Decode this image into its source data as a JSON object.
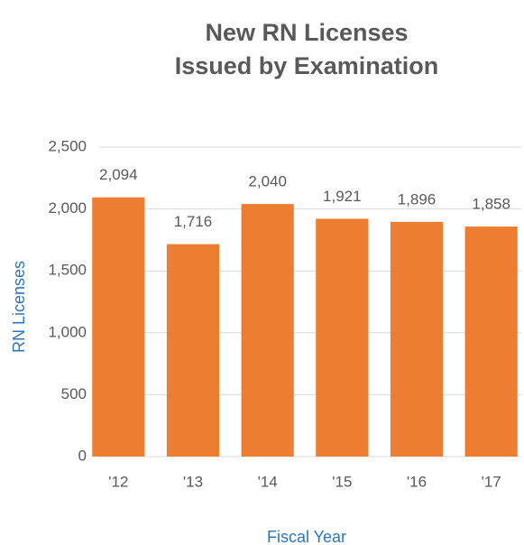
{
  "chart_data": {
    "type": "bar",
    "title": [
      "New RN Licenses",
      "Issued by Examination"
    ],
    "x_label": "Fiscal Year",
    "y_label": "RN Licenses",
    "categories": [
      "'12",
      "'13",
      "'14",
      "'15",
      "'16",
      "'17"
    ],
    "values": [
      2094,
      1716,
      2040,
      1921,
      1896,
      1858
    ],
    "value_labels": [
      "2,094",
      "1,716",
      "2,040",
      "1,921",
      "1,896",
      "1,858"
    ],
    "color": "#ed7d31",
    "ylim": [
      0,
      2500
    ],
    "yticks": [
      0,
      500,
      {
        "value": 1000,
        "label": "1,000"
      },
      {
        "value": 1500,
        "label": "1,500"
      },
      {
        "value": 2000,
        "label": "2,000"
      },
      {
        "value": 2500,
        "label": "2,500"
      }
    ],
    "grid": true
  }
}
